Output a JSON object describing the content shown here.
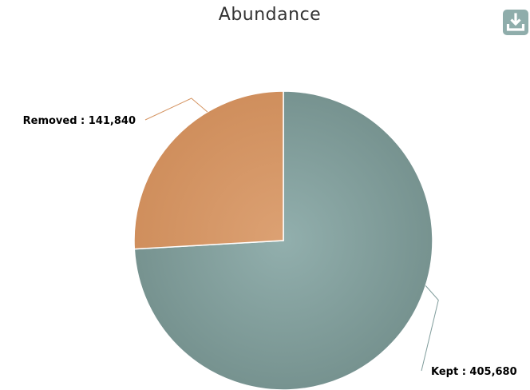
{
  "title": "Abundance",
  "toolbar": {
    "download_icon": "download-icon"
  },
  "colors": {
    "kept": "#7f9c9b",
    "removed": "#d59563",
    "connector_removed": "#d59563",
    "connector_kept": "#7f9c9b"
  },
  "chart_data": {
    "type": "pie",
    "title": "Abundance",
    "slices": [
      {
        "name": "Kept",
        "value": 405680,
        "label": "Kept : 405,680"
      },
      {
        "name": "Removed",
        "value": 141840,
        "label": "Removed : 141,840"
      }
    ]
  }
}
